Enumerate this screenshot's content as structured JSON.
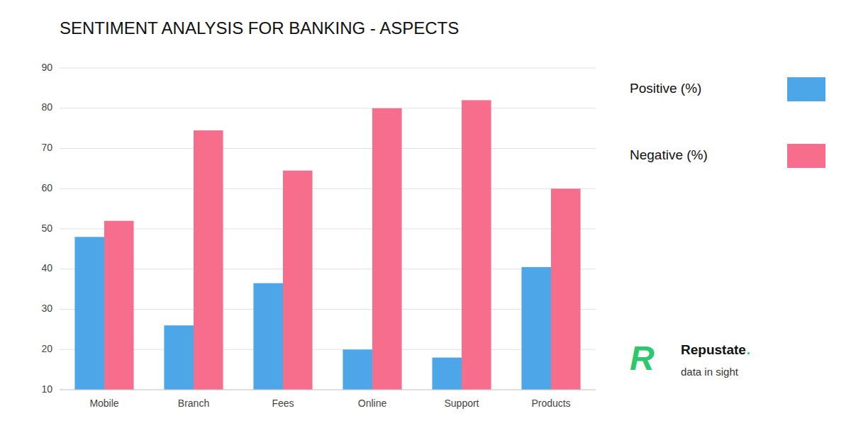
{
  "chart_data": {
    "type": "bar",
    "title": "SENTIMENT ANALYSIS FOR BANKING - ASPECTS",
    "categories": [
      "Mobile",
      "Branch",
      "Fees",
      "Online",
      "Support",
      "Products"
    ],
    "series": [
      {
        "name": "Positive (%)",
        "color": "#4DA6E8",
        "values": [
          48,
          26,
          36.5,
          20,
          18,
          40.5
        ]
      },
      {
        "name": "Negative (%)",
        "color": "#F76E8C",
        "values": [
          52,
          74.5,
          64.5,
          80,
          82,
          60
        ]
      }
    ],
    "ylim": [
      10,
      90
    ],
    "yticks": [
      10,
      20,
      30,
      40,
      50,
      60,
      70,
      80,
      90
    ],
    "grid": true,
    "legend": "right",
    "annotations": [
      "R",
      "Repustate",
      ".",
      "data in sight"
    ]
  }
}
